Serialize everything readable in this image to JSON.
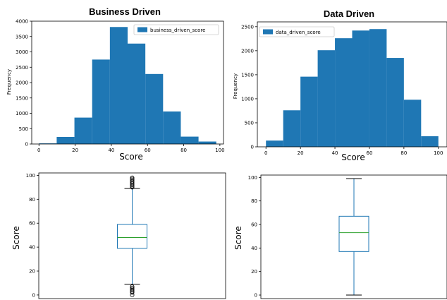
{
  "chart_data": [
    {
      "type": "histogram",
      "title": "Business Driven",
      "xlabel": "Score",
      "ylabel": "Frequency",
      "xlim": [
        -4,
        102
      ],
      "ylim": [
        0,
        4000
      ],
      "xticks": [
        0,
        20,
        40,
        60,
        80,
        100
      ],
      "yticks": [
        0,
        500,
        1000,
        1500,
        2000,
        2500,
        3000,
        3500,
        4000
      ],
      "legend": "top-right",
      "series": [
        {
          "name": "business_driven_score",
          "color": "#1f77b4",
          "bins": [
            0,
            9.8,
            19.6,
            29.4,
            39.2,
            49,
            58.8,
            68.6,
            78.4,
            88.2,
            98
          ],
          "values": [
            20,
            230,
            860,
            2750,
            3810,
            3270,
            2280,
            1060,
            240,
            80
          ]
        }
      ]
    },
    {
      "type": "histogram",
      "title": "Data Driven",
      "xlabel": "Score",
      "ylabel": "Frequency",
      "xlim": [
        -5,
        105
      ],
      "ylim": [
        0,
        2600
      ],
      "xticks": [
        0,
        20,
        40,
        60,
        80,
        100
      ],
      "yticks": [
        0,
        500,
        1000,
        1500,
        2000,
        2500
      ],
      "legend": "top-left",
      "series": [
        {
          "name": "data_driven_score",
          "color": "#1f77b4",
          "bins": [
            0,
            10,
            20,
            30,
            40,
            50,
            60,
            70,
            80,
            90,
            100
          ],
          "values": [
            130,
            760,
            1460,
            2010,
            2260,
            2420,
            2450,
            1850,
            980,
            220
          ]
        }
      ]
    },
    {
      "type": "box",
      "xlabel": "",
      "ylabel": "Score",
      "ylim": [
        -3,
        102
      ],
      "yticks": [
        0,
        20,
        40,
        60,
        80,
        100
      ],
      "box": {
        "whisker_low": 9,
        "q1": 39,
        "median": 48,
        "q3": 59,
        "whisker_high": 89
      },
      "outliers": [
        0,
        2,
        3,
        4,
        5,
        6,
        7,
        90,
        91,
        92,
        93,
        94,
        95,
        96,
        97,
        98
      ],
      "box_color": "#1f77b4",
      "median_color": "#2ca02c"
    },
    {
      "type": "box",
      "xlabel": "",
      "ylabel": "Score",
      "ylim": [
        -3,
        102
      ],
      "yticks": [
        0,
        20,
        40,
        60,
        80,
        100
      ],
      "box": {
        "whisker_low": 0,
        "q1": 37,
        "median": 53,
        "q3": 67,
        "whisker_high": 99
      },
      "outliers": [],
      "box_color": "#1f77b4",
      "median_color": "#2ca02c"
    }
  ]
}
